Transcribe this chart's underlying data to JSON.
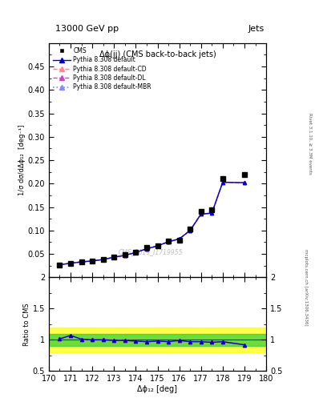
{
  "title_top": "13000 GeV pp",
  "title_right": "Jets",
  "plot_title": "Δϕ(jj) (CMS back-to-back jets)",
  "watermark": "CMS_2019_I1719955",
  "right_label_top": "Rivet 3.1.10, ≥ 3.3M events",
  "right_label_bottom": "mcplots.cern.ch [arXiv:1306.3436]",
  "xlabel": "Δϕ₁₂ [deg]",
  "ylabel": "1/σ dσ/dΔϕ₁₂  [deg⁻¹]",
  "ratio_ylabel": "Ratio to CMS",
  "xdata": [
    170.5,
    171.0,
    171.5,
    172.0,
    172.5,
    173.0,
    173.5,
    174.0,
    174.5,
    175.0,
    175.5,
    176.0,
    176.5,
    177.0,
    177.5,
    178.0,
    179.0
  ],
  "cms_y": [
    0.027,
    0.03,
    0.033,
    0.035,
    0.039,
    0.043,
    0.048,
    0.054,
    0.063,
    0.068,
    0.078,
    0.08,
    0.103,
    0.14,
    0.144,
    0.21,
    0.219
  ],
  "pyth_y": [
    0.027,
    0.03,
    0.033,
    0.035,
    0.038,
    0.043,
    0.047,
    0.053,
    0.061,
    0.067,
    0.076,
    0.082,
    0.1,
    0.135,
    0.137,
    0.203,
    0.202
  ],
  "ratio_default": [
    1.015,
    1.07,
    1.01,
    1.0,
    1.0,
    0.99,
    0.99,
    0.98,
    0.97,
    0.98,
    0.97,
    0.99,
    0.97,
    0.97,
    0.96,
    0.97,
    0.92
  ],
  "ratio_cd": [
    1.015,
    1.07,
    1.01,
    1.0,
    1.0,
    0.99,
    0.99,
    0.98,
    0.97,
    0.98,
    0.97,
    0.99,
    0.97,
    0.97,
    0.96,
    0.97,
    0.92
  ],
  "ratio_dl": [
    1.015,
    1.07,
    1.01,
    1.0,
    1.0,
    0.99,
    0.99,
    0.98,
    0.97,
    0.98,
    0.97,
    0.99,
    0.97,
    0.97,
    0.96,
    0.97,
    0.92
  ],
  "ratio_mbr": [
    1.015,
    1.07,
    1.01,
    1.0,
    1.0,
    0.99,
    0.99,
    0.98,
    0.97,
    0.98,
    0.97,
    0.99,
    0.97,
    0.97,
    0.96,
    0.97,
    0.92
  ],
  "color_cms": "#000000",
  "color_default": "#0000cc",
  "color_cd": "#ff8888",
  "color_dl": "#cc44cc",
  "color_mbr": "#8888ff",
  "xlim": [
    170,
    180
  ],
  "ylim_main": [
    0.0,
    0.5
  ],
  "ylim_ratio": [
    0.5,
    2.0
  ],
  "green_band": [
    0.9,
    1.1
  ],
  "yellow_band": [
    0.8,
    1.2
  ]
}
